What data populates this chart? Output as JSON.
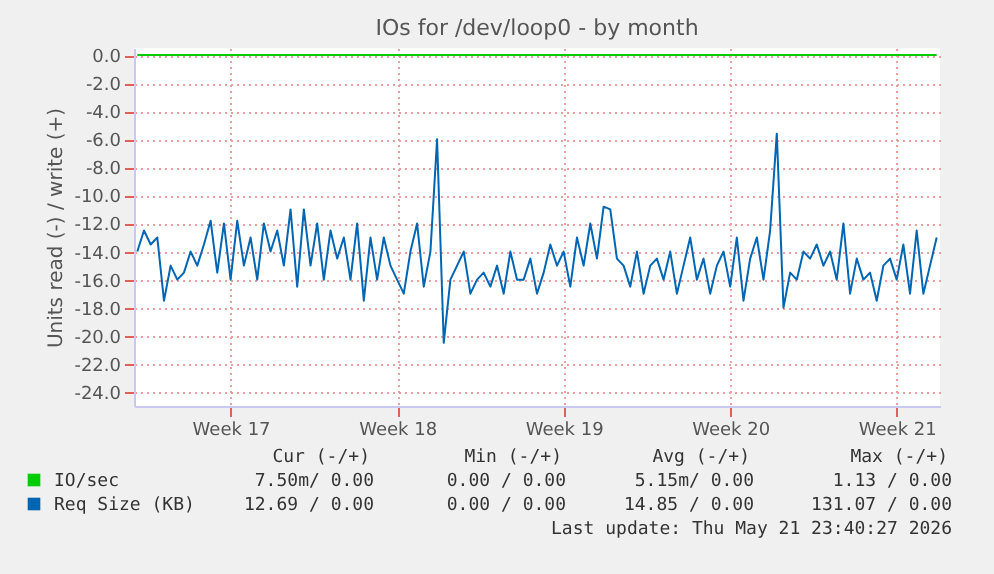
{
  "chart_data": {
    "type": "line",
    "title": "IOs for /dev/loop0 - by month",
    "ylabel": "Units read (-) / write (+)",
    "categories": [
      null,
      null,
      null,
      null,
      null,
      null,
      null,
      null,
      null,
      null,
      null,
      null,
      null,
      null,
      "Week 17",
      null,
      null,
      null,
      null,
      null,
      null,
      null,
      null,
      null,
      null,
      null,
      null,
      null,
      null,
      null,
      null,
      null,
      null,
      null,
      null,
      null,
      null,
      null,
      null,
      "Week 18",
      null,
      null,
      null,
      null,
      null,
      null,
      null,
      null,
      null,
      null,
      null,
      null,
      null,
      null,
      null,
      null,
      null,
      null,
      null,
      null,
      null,
      null,
      null,
      null,
      "Week 19",
      null,
      null,
      null,
      null,
      null,
      null,
      null,
      null,
      null,
      null,
      null,
      null,
      null,
      null,
      null,
      null,
      null,
      null,
      null,
      null,
      null,
      null,
      null,
      null,
      "Week 20",
      null,
      null,
      null,
      null,
      null,
      null,
      null,
      null,
      null,
      null,
      null,
      null,
      null,
      null,
      null,
      null,
      null,
      null,
      null,
      null,
      null,
      null,
      null,
      null,
      "Week 21",
      null,
      null,
      null,
      null,
      null,
      null
    ],
    "series": [
      {
        "name": "IO/sec",
        "color": "#00cc00",
        "values": [
          0,
          0,
          0,
          0,
          0,
          0,
          0,
          0,
          0,
          0,
          0,
          0,
          0,
          0,
          0,
          0,
          0,
          0,
          0,
          0,
          0,
          0,
          0,
          0,
          0,
          0,
          0,
          0,
          0,
          0,
          0,
          0,
          0,
          0,
          0,
          0,
          0,
          0,
          0,
          0,
          0,
          0,
          0,
          0,
          0,
          0,
          0,
          0,
          0,
          0,
          0,
          0,
          0,
          0,
          0,
          0,
          0,
          0,
          0,
          0,
          0,
          0,
          0,
          0,
          0,
          0,
          0,
          0,
          0,
          0,
          0,
          0,
          0,
          0,
          0,
          0,
          0,
          0,
          0,
          0,
          0,
          0,
          0,
          0,
          0,
          0,
          0,
          0,
          0,
          0,
          0,
          0,
          0,
          0,
          0,
          0,
          0,
          0,
          0,
          0,
          0,
          0,
          0,
          0,
          0,
          0,
          0,
          0,
          0,
          0,
          0,
          0,
          0,
          0,
          0,
          0,
          0,
          0,
          0,
          0,
          0
        ]
      },
      {
        "name": "Req Size (KB)",
        "color": "#0066b3",
        "values": [
          -14,
          -12.5,
          -13.5,
          -13,
          -17.5,
          -15,
          -16,
          -15.5,
          -14,
          -15,
          -13.5,
          -11.8,
          -15.5,
          -12,
          -16,
          -11.8,
          -15,
          -13,
          -16,
          -12,
          -14,
          -12.5,
          -15,
          -11,
          -16.5,
          -11,
          -15,
          -12,
          -16,
          -12.5,
          -14.5,
          -13,
          -16,
          -12,
          -17.5,
          -13,
          -16,
          -13,
          -15,
          -16,
          -17,
          -14,
          -12,
          -16.5,
          -14,
          -6,
          -20.5,
          -16,
          -15,
          -14,
          -17,
          -16,
          -15.5,
          -16.5,
          -15,
          -17,
          -14,
          -16,
          -16,
          -14.5,
          -17,
          -15.5,
          -13.5,
          -15,
          -14,
          -16.5,
          -13,
          -15,
          -12,
          -14.5,
          -10.8,
          -11,
          -14.5,
          -15,
          -16.5,
          -14,
          -17,
          -15,
          -14.5,
          -16,
          -14,
          -17,
          -15,
          -13,
          -16,
          -14.5,
          -17,
          -15,
          -14,
          -16.5,
          -13,
          -17.5,
          -14.5,
          -13,
          -16,
          -12.5,
          -5.6,
          -18,
          -15.5,
          -16,
          -14,
          -14.5,
          -13.5,
          -15,
          -14,
          -16,
          -12,
          -17,
          -14.5,
          -16,
          -15.5,
          -17.5,
          -15,
          -14.5,
          -16,
          -13.5,
          -17,
          -12.5,
          -17,
          -15,
          -13
        ]
      }
    ],
    "ylim": [
      -25,
      0.5
    ],
    "yticks": [
      {
        "value": 0,
        "label": "0.0"
      },
      {
        "value": -2,
        "label": "-2.0"
      },
      {
        "value": -4,
        "label": "-4.0"
      },
      {
        "value": -6,
        "label": "-6.0"
      },
      {
        "value": -8,
        "label": "-8.0"
      },
      {
        "value": -10,
        "label": "-10.0"
      },
      {
        "value": -12,
        "label": "-12.0"
      },
      {
        "value": -14,
        "label": "-14.0"
      },
      {
        "value": -16,
        "label": "-16.0"
      },
      {
        "value": -18,
        "label": "-18.0"
      },
      {
        "value": -20,
        "label": "-20.0"
      },
      {
        "value": -22,
        "label": "-22.0"
      },
      {
        "value": -24,
        "label": "-24.0"
      }
    ],
    "grid": true,
    "legend": "bottom",
    "line_style": "solid",
    "annotations": [
      "Cur (-/+)",
      "Min (-/+)",
      "Avg (-/+)",
      "Max (-/+)",
      "7.50m/ 0.00",
      "0.00 / 0.00",
      "5.15m/ 0.00",
      "1.13 / 0.00",
      "12.69 / 0.00",
      "0.00 / 0.00",
      "14.85 / 0.00",
      "131.07 / 0.00",
      "Last update: Thu May 21 23:40:27 2026"
    ]
  }
}
